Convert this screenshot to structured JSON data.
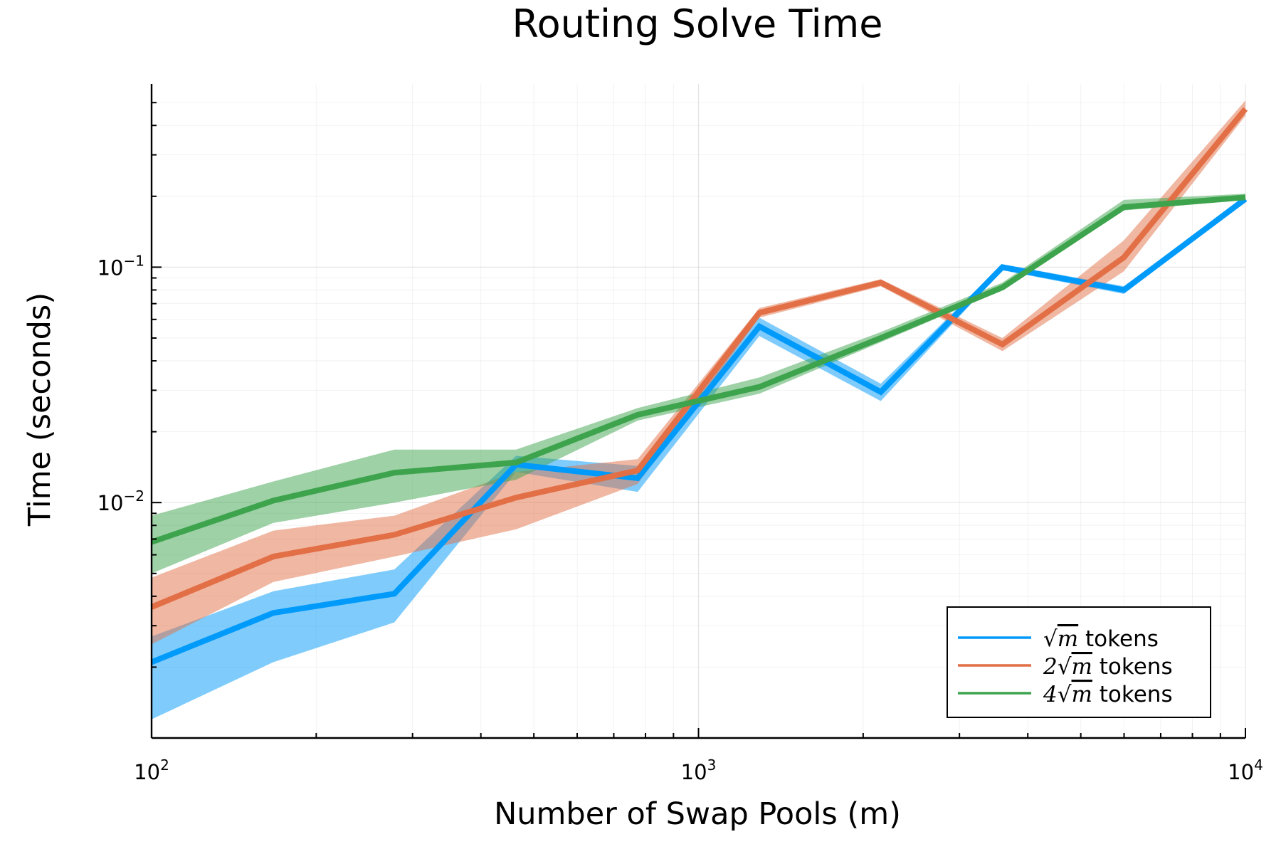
{
  "chart_data": {
    "type": "line",
    "title": "Routing Solve Time",
    "xlabel": "Number of Swap Pools (m)",
    "ylabel": "Time (seconds)",
    "xscale": "log",
    "yscale": "log",
    "xlim": [
      100,
      10000
    ],
    "ylim": [
      0.001,
      0.6
    ],
    "x_ticks": [
      {
        "value": 100,
        "base": "10",
        "exp": "2"
      },
      {
        "value": 1000,
        "base": "10",
        "exp": "3"
      },
      {
        "value": 10000,
        "base": "10",
        "exp": "4"
      }
    ],
    "y_ticks": [
      {
        "value": 0.01,
        "base": "10",
        "exp": "−2"
      },
      {
        "value": 0.1,
        "base": "10",
        "exp": "−1"
      }
    ],
    "grid": true,
    "legend_position": "bottom-right",
    "x": [
      100,
      167,
      278,
      464,
      774,
      1292,
      2154,
      3594,
      5995,
      10000
    ],
    "series": [
      {
        "name": "√m tokens",
        "label_text": "tokens",
        "coefficient": "",
        "color": "#009AFA",
        "values": [
          0.0021,
          0.0034,
          0.0041,
          0.0145,
          0.0127,
          0.056,
          0.0295,
          0.1,
          0.08,
          0.195
        ],
        "lower": [
          0.0012,
          0.0021,
          0.0031,
          0.0135,
          0.0111,
          0.051,
          0.027,
          0.097,
          0.077,
          0.19
        ],
        "upper": [
          0.0027,
          0.0042,
          0.0052,
          0.0158,
          0.0143,
          0.061,
          0.032,
          0.103,
          0.083,
          0.2
        ]
      },
      {
        "name": "2√m tokens",
        "label_text": "tokens",
        "coefficient": "2",
        "color": "#E26F46",
        "values": [
          0.0036,
          0.0059,
          0.0073,
          0.0105,
          0.0137,
          0.064,
          0.086,
          0.047,
          0.11,
          0.47
        ],
        "lower": [
          0.0025,
          0.0046,
          0.0059,
          0.0077,
          0.012,
          0.061,
          0.083,
          0.044,
          0.096,
          0.44
        ],
        "upper": [
          0.0048,
          0.0076,
          0.0088,
          0.0135,
          0.0153,
          0.067,
          0.089,
          0.05,
          0.13,
          0.51
        ]
      },
      {
        "name": "4√m tokens",
        "label_text": "tokens",
        "coefficient": "4",
        "color": "#3DA44D",
        "values": [
          0.0068,
          0.0102,
          0.0134,
          0.0148,
          0.0236,
          0.031,
          0.05,
          0.082,
          0.18,
          0.198
        ],
        "lower": [
          0.005,
          0.0082,
          0.01,
          0.0125,
          0.0223,
          0.029,
          0.048,
          0.08,
          0.174,
          0.193
        ],
        "upper": [
          0.0088,
          0.0123,
          0.0168,
          0.0168,
          0.0252,
          0.034,
          0.053,
          0.086,
          0.193,
          0.205
        ]
      }
    ]
  }
}
